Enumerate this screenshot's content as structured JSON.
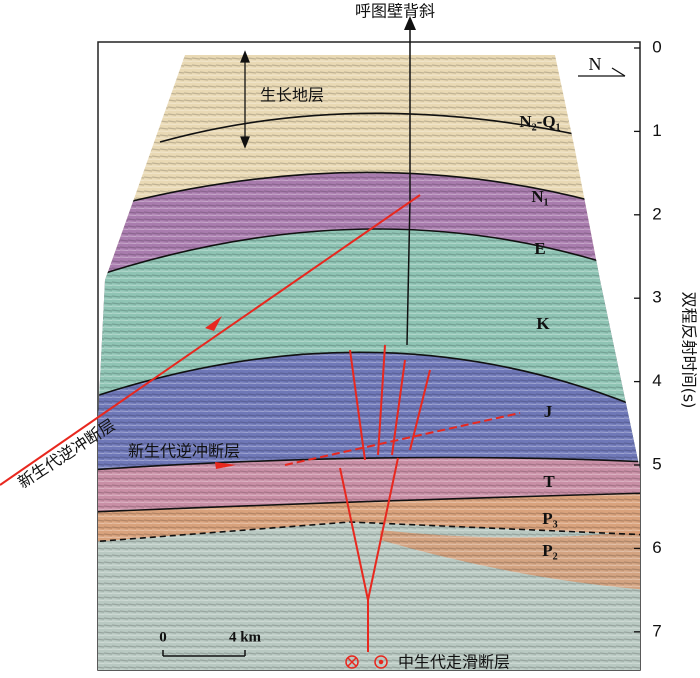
{
  "title": "呼图壁背斜",
  "north": "N",
  "growth_strata": "生长地层",
  "layers": [
    "N₂-Q₁",
    "N₁",
    "E",
    "K",
    "J",
    "T",
    "P₃",
    "P₂"
  ],
  "faults": {
    "thrust_upper": "新生代逆冲断层",
    "thrust_lower": "新生代逆冲断层",
    "strike_slip": "中生代走滑断层"
  },
  "scale_bar": {
    "start": "0",
    "end": "4 km"
  },
  "time_axis": {
    "label": "双程反射时间(s)",
    "ticks": [
      0,
      1,
      2,
      3,
      4,
      5,
      6,
      7
    ]
  }
}
